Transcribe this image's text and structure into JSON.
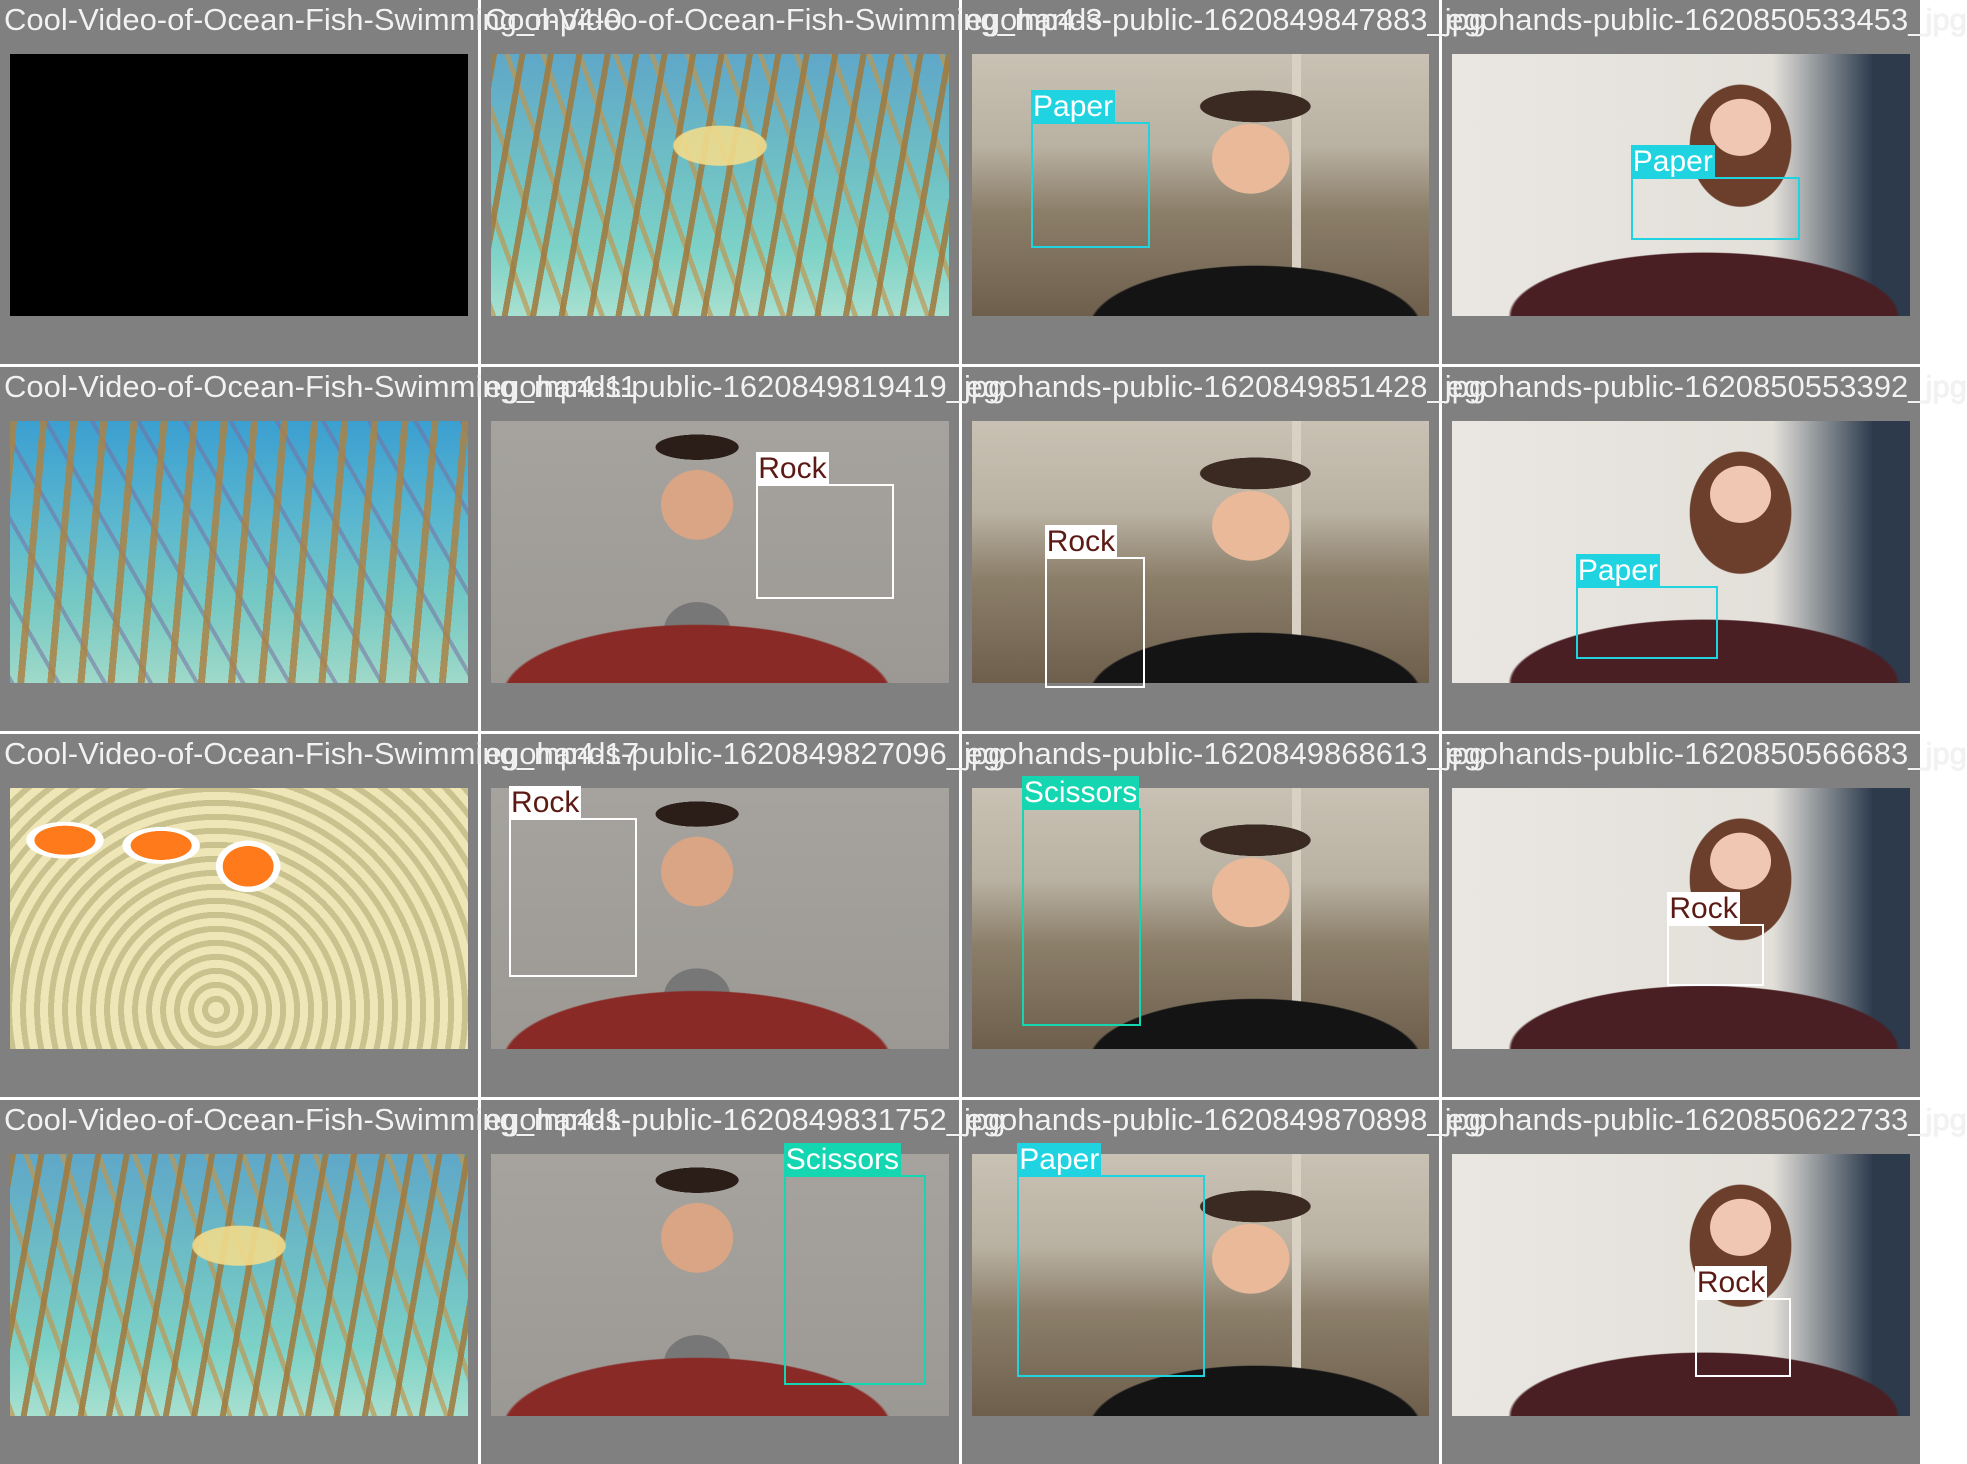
{
  "tiles": [
    {
      "title": "Cool-Video-of-Ocean-Fish-Swimming_mp4-0",
      "scene": "black",
      "detections": []
    },
    {
      "title": "Cool-Video-of-Ocean-Fish-Swimming_mp4-3",
      "scene": "ocean",
      "detections": []
    },
    {
      "title": "egohands-public-1620849847883_jpg",
      "scene": "cam-b",
      "detections": [
        {
          "label": "Paper",
          "cls": "paper"
        }
      ]
    },
    {
      "title": "egohands-public-1620850533453_jpg",
      "scene": "cam-w",
      "detections": [
        {
          "label": "Paper",
          "cls": "paper"
        }
      ]
    },
    {
      "title": "Cool-Video-of-Ocean-Fish-Swimming_mp4-11",
      "scene": "ocean2",
      "detections": []
    },
    {
      "title": "egohands-public-1620849819419_jpg",
      "scene": "cam-m",
      "detections": [
        {
          "label": "Rock",
          "cls": "rock"
        }
      ]
    },
    {
      "title": "egohands-public-1620849851428_jpg",
      "scene": "cam-b",
      "detections": [
        {
          "label": "Rock",
          "cls": "rock"
        }
      ]
    },
    {
      "title": "egohands-public-1620850553392_jpg",
      "scene": "cam-w",
      "detections": [
        {
          "label": "Paper",
          "cls": "paper"
        }
      ]
    },
    {
      "title": "Cool-Video-of-Ocean-Fish-Swimming_mp4-17",
      "scene": "clown",
      "detections": []
    },
    {
      "title": "egohands-public-1620849827096_jpg",
      "scene": "cam-m",
      "detections": [
        {
          "label": "Rock",
          "cls": "rock"
        }
      ]
    },
    {
      "title": "egohands-public-1620849868613_jpg",
      "scene": "cam-b",
      "detections": [
        {
          "label": "Scissors",
          "cls": "scissors"
        }
      ]
    },
    {
      "title": "egohands-public-1620850566683_jpg",
      "scene": "cam-w",
      "detections": [
        {
          "label": "Rock",
          "cls": "rock"
        }
      ]
    },
    {
      "title": "Cool-Video-of-Ocean-Fish-Swimming_mp4-1",
      "scene": "ocean",
      "detections": []
    },
    {
      "title": "egohands-public-1620849831752_jpg",
      "scene": "cam-m",
      "detections": [
        {
          "label": "Scissors",
          "cls": "scissors"
        }
      ]
    },
    {
      "title": "egohands-public-1620849870898_jpg",
      "scene": "cam-b",
      "detections": [
        {
          "label": "Paper",
          "cls": "paper"
        }
      ]
    },
    {
      "title": "egohands-public-1620850622733_jpg",
      "scene": "cam-w",
      "detections": [
        {
          "label": "Rock",
          "cls": "rock"
        }
      ]
    }
  ]
}
